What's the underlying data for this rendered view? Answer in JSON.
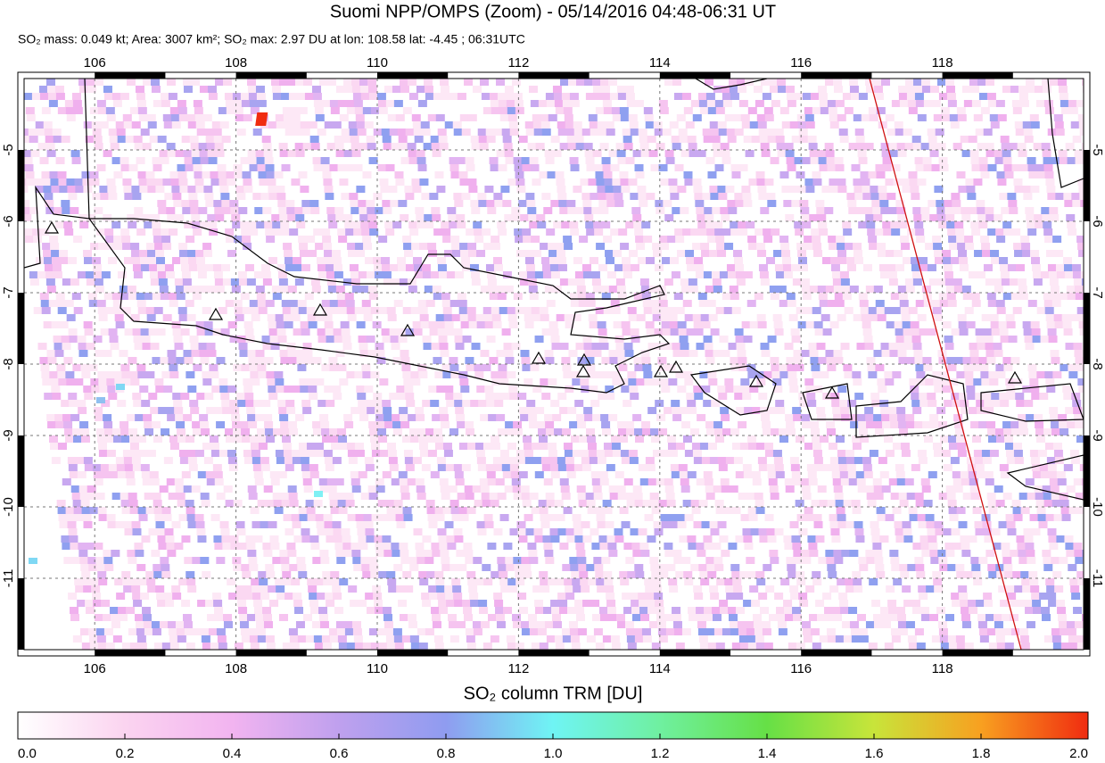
{
  "title": "Suomi NPP/OMPS (Zoom) - 05/14/2016 04:48-06:31 UT",
  "subtitle": "SO₂ mass: 0.049 kt; Area: 3007 km²; SO₂ max: 2.97 DU at lon: 108.58 lat: -4.45 ; 06:31UTC",
  "map": {
    "xlim": [
      105,
      120
    ],
    "ylim": [
      -12,
      -4
    ],
    "xticks": [
      106,
      108,
      110,
      112,
      114,
      116,
      118
    ],
    "yticks": [
      -5,
      -6,
      -7,
      -8,
      -9,
      -10,
      -11
    ]
  },
  "colorbar": {
    "label": "SO₂ column TRM [DU]",
    "lim": [
      0,
      2
    ],
    "ticks": [
      {
        "value": 0,
        "label": "0.0"
      },
      {
        "value": 0.2,
        "label": "0.2"
      },
      {
        "value": 0.4,
        "label": "0.4"
      },
      {
        "value": 0.6,
        "label": "0.6"
      },
      {
        "value": 0.8,
        "label": "0.8"
      },
      {
        "value": 1,
        "label": "1.0"
      },
      {
        "value": 1.2,
        "label": "1.2"
      },
      {
        "value": 1.4,
        "label": "1.4"
      },
      {
        "value": 1.6,
        "label": "1.6"
      },
      {
        "value": 1.8,
        "label": "1.8"
      },
      {
        "value": 2,
        "label": "2.0"
      }
    ]
  }
}
